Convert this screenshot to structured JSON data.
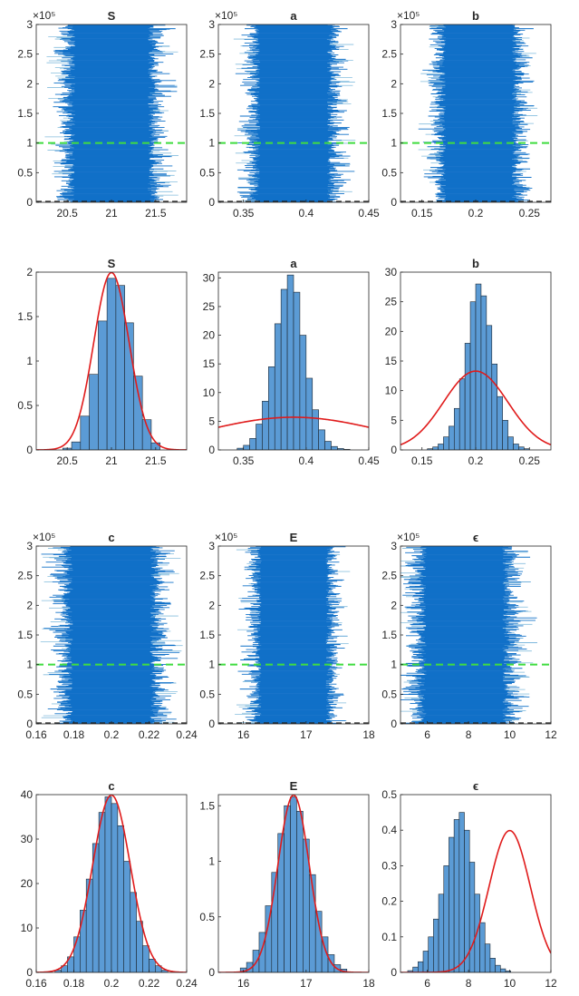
{
  "chart_data": [
    {
      "id": "trace-S",
      "type": "trace",
      "title": "S",
      "ylim": [
        0,
        3
      ],
      "yticks": [
        0,
        0.5,
        1,
        1.5,
        2,
        2.5,
        3
      ],
      "ytick_labels": [
        "0",
        "0.5",
        "1",
        "1.5",
        "2",
        "2.5",
        "3"
      ],
      "y_exponent_label": "×10⁵",
      "xlim": [
        20.15,
        21.85
      ],
      "xticks": [
        20.5,
        21,
        21.5
      ],
      "xtick_labels": [
        "20.5",
        "21",
        "21.5"
      ],
      "band_center": 21.0,
      "band_sd": 0.2,
      "burn_in": 1,
      "seed": 11
    },
    {
      "id": "trace-a",
      "type": "trace",
      "title": "a",
      "ylim": [
        0,
        3
      ],
      "yticks": [
        0,
        0.5,
        1,
        1.5,
        2,
        2.5,
        3
      ],
      "ytick_labels": [
        "0",
        "0.5",
        "1",
        "1.5",
        "2",
        "2.5",
        "3"
      ],
      "y_exponent_label": "×10⁵",
      "xlim": [
        0.33,
        0.45
      ],
      "xticks": [
        0.35,
        0.4,
        0.45
      ],
      "xtick_labels": [
        "0.35",
        "0.4",
        "0.45"
      ],
      "band_center": 0.39,
      "band_sd": 0.013,
      "burn_in": 1,
      "seed": 23
    },
    {
      "id": "trace-b",
      "type": "trace",
      "title": "b",
      "ylim": [
        0,
        3
      ],
      "yticks": [
        0,
        0.5,
        1,
        1.5,
        2,
        2.5,
        3
      ],
      "ytick_labels": [
        "0",
        "0.5",
        "1",
        "1.5",
        "2",
        "2.5",
        "3"
      ],
      "y_exponent_label": "×10⁵",
      "xlim": [
        0.13,
        0.27
      ],
      "xticks": [
        0.15,
        0.2,
        0.25
      ],
      "xtick_labels": [
        "0.15",
        "0.2",
        "0.25"
      ],
      "band_center": 0.203,
      "band_sd": 0.015,
      "burn_in": 1,
      "seed": 37
    },
    {
      "id": "hist-S",
      "type": "histogram",
      "title": "S",
      "ylim": [
        0,
        2
      ],
      "yticks": [
        0,
        0.5,
        1,
        1.5,
        2
      ],
      "ytick_labels": [
        "0",
        "0.5",
        "1",
        "1.5",
        "2"
      ],
      "xlim": [
        20.15,
        21.85
      ],
      "xticks": [
        20.5,
        21,
        21.5
      ],
      "xtick_labels": [
        "20.5",
        "21",
        "21.5"
      ],
      "bin_edges": [
        20.45,
        20.55,
        20.65,
        20.75,
        20.85,
        20.95,
        21.05,
        21.15,
        21.25,
        21.35,
        21.45,
        21.55
      ],
      "densities": [
        0.02,
        0.09,
        0.38,
        0.85,
        1.45,
        1.93,
        1.85,
        1.43,
        0.83,
        0.34,
        0.08
      ],
      "prior": {
        "dist": "normal",
        "mean": 21.0,
        "sd": 0.2
      }
    },
    {
      "id": "hist-a",
      "type": "histogram",
      "title": "a",
      "ylim": [
        0,
        31
      ],
      "yticks": [
        0,
        5,
        10,
        15,
        20,
        25,
        30
      ],
      "ytick_labels": [
        "0",
        "5",
        "10",
        "15",
        "20",
        "25",
        "30"
      ],
      "xlim": [
        0.33,
        0.45
      ],
      "xticks": [
        0.35,
        0.4,
        0.45
      ],
      "xtick_labels": [
        "0.35",
        "0.4",
        "0.45"
      ],
      "bin_edges": [
        0.345,
        0.35,
        0.355,
        0.36,
        0.365,
        0.37,
        0.375,
        0.38,
        0.385,
        0.39,
        0.395,
        0.4,
        0.405,
        0.41,
        0.415,
        0.42,
        0.425,
        0.43,
        0.435
      ],
      "densities": [
        0.3,
        0.8,
        2.0,
        4.5,
        8.5,
        14.5,
        22.0,
        28.0,
        30.5,
        27.5,
        20.0,
        12.5,
        7.0,
        3.5,
        1.5,
        0.6,
        0.25,
        0.1
      ],
      "prior": {
        "dist": "normal",
        "mean": 0.39,
        "sd": 0.07
      }
    },
    {
      "id": "hist-b",
      "type": "histogram",
      "title": "b",
      "ylim": [
        0,
        30
      ],
      "yticks": [
        0,
        5,
        10,
        15,
        20,
        25,
        30
      ],
      "ytick_labels": [
        "0",
        "5",
        "10",
        "15",
        "20",
        "25",
        "30"
      ],
      "xlim": [
        0.13,
        0.27
      ],
      "xticks": [
        0.15,
        0.2,
        0.25
      ],
      "xtick_labels": [
        "0.15",
        "0.2",
        "0.25"
      ],
      "bin_edges": [
        0.155,
        0.16,
        0.165,
        0.17,
        0.175,
        0.18,
        0.185,
        0.19,
        0.195,
        0.2,
        0.205,
        0.21,
        0.215,
        0.22,
        0.225,
        0.23,
        0.235,
        0.24,
        0.245,
        0.25
      ],
      "densities": [
        0.2,
        0.5,
        1.0,
        2.2,
        4.0,
        7.0,
        12.0,
        18.0,
        25.0,
        28.0,
        26.0,
        21.0,
        14.5,
        9.0,
        5.0,
        2.2,
        1.0,
        0.5,
        0.2
      ],
      "prior": {
        "dist": "normal",
        "mean": 0.2,
        "sd": 0.03
      }
    },
    {
      "id": "trace-c",
      "type": "trace",
      "title": "c",
      "ylim": [
        0,
        3
      ],
      "yticks": [
        0,
        0.5,
        1,
        1.5,
        2,
        2.5,
        3
      ],
      "ytick_labels": [
        "0",
        "0.5",
        "1",
        "1.5",
        "2",
        "2.5",
        "3"
      ],
      "y_exponent_label": "×10⁵",
      "xlim": [
        0.16,
        0.24
      ],
      "xticks": [
        0.16,
        0.18,
        0.2,
        0.22,
        0.24
      ],
      "xtick_labels": [
        "0.16",
        "0.18",
        "0.2",
        "0.22",
        "0.24"
      ],
      "band_center": 0.2,
      "band_sd": 0.01,
      "burn_in": 1,
      "seed": 41
    },
    {
      "id": "trace-E",
      "type": "trace",
      "title": "E",
      "ylim": [
        0,
        3
      ],
      "yticks": [
        0,
        0.5,
        1,
        1.5,
        2,
        2.5,
        3
      ],
      "ytick_labels": [
        "0",
        "0.5",
        "1",
        "1.5",
        "2",
        "2.5",
        "3"
      ],
      "y_exponent_label": "×10⁵",
      "xlim": [
        15.6,
        18
      ],
      "xticks": [
        16,
        17,
        18
      ],
      "xtick_labels": [
        "16",
        "17",
        "18"
      ],
      "band_center": 16.8,
      "band_sd": 0.25,
      "burn_in": 1,
      "seed": 53
    },
    {
      "id": "trace-eps",
      "type": "trace",
      "title": "ϵ",
      "ylim": [
        0,
        3
      ],
      "yticks": [
        0,
        0.5,
        1,
        1.5,
        2,
        2.5,
        3
      ],
      "ytick_labels": [
        "0",
        "0.5",
        "1",
        "1.5",
        "2",
        "2.5",
        "3"
      ],
      "y_exponent_label": "×10⁵",
      "xlim": [
        4.7,
        12
      ],
      "xticks": [
        6,
        8,
        10,
        12
      ],
      "xtick_labels": [
        "6",
        "8",
        "10",
        "12"
      ],
      "band_center": 7.8,
      "band_sd": 0.9,
      "burn_in": 1,
      "seed": 67
    },
    {
      "id": "hist-c",
      "type": "histogram",
      "title": "c",
      "ylim": [
        0,
        40
      ],
      "yticks": [
        0,
        10,
        20,
        30,
        40
      ],
      "ytick_labels": [
        "0",
        "10",
        "20",
        "30",
        "40"
      ],
      "xlim": [
        0.16,
        0.24
      ],
      "xticks": [
        0.16,
        0.18,
        0.2,
        0.22,
        0.24
      ],
      "xtick_labels": [
        "0.16",
        "0.18",
        "0.2",
        "0.22",
        "0.24"
      ],
      "bin_edges": [
        0.17,
        0.1733,
        0.1766,
        0.18,
        0.1833,
        0.1866,
        0.19,
        0.1933,
        0.1966,
        0.2,
        0.2033,
        0.2066,
        0.21,
        0.2133,
        0.2166,
        0.22,
        0.2233,
        0.2266,
        0.23
      ],
      "densities": [
        0.5,
        1.5,
        3.5,
        8.0,
        14.0,
        21.0,
        29.0,
        36.0,
        39.5,
        38.0,
        33.0,
        25.0,
        18.0,
        11.5,
        6.0,
        3.0,
        1.5,
        0.5
      ],
      "prior": {
        "dist": "normal",
        "mean": 0.2,
        "sd": 0.01
      }
    },
    {
      "id": "hist-E",
      "type": "histogram",
      "title": "E",
      "ylim": [
        0,
        1.6
      ],
      "yticks": [
        0,
        0.5,
        1,
        1.5
      ],
      "ytick_labels": [
        "0",
        "0.5",
        "1",
        "1.5"
      ],
      "xlim": [
        15.6,
        18
      ],
      "xticks": [
        16,
        17,
        18
      ],
      "xtick_labels": [
        "16",
        "17",
        "18"
      ],
      "bin_edges": [
        15.95,
        16.05,
        16.15,
        16.25,
        16.35,
        16.45,
        16.55,
        16.65,
        16.75,
        16.85,
        16.95,
        17.05,
        17.15,
        17.25,
        17.35,
        17.45,
        17.55,
        17.65
      ],
      "densities": [
        0.04,
        0.09,
        0.2,
        0.36,
        0.6,
        0.9,
        1.25,
        1.5,
        1.58,
        1.45,
        1.2,
        0.88,
        0.55,
        0.32,
        0.16,
        0.07,
        0.03
      ],
      "prior": {
        "dist": "normal",
        "mean": 16.8,
        "sd": 0.25
      }
    },
    {
      "id": "hist-eps",
      "type": "histogram",
      "title": "ϵ",
      "ylim": [
        0,
        0.5
      ],
      "yticks": [
        0,
        0.1,
        0.2,
        0.3,
        0.4,
        0.5
      ],
      "ytick_labels": [
        "0",
        "0.1",
        "0.2",
        "0.3",
        "0.4",
        "0.5"
      ],
      "xlim": [
        4.7,
        12
      ],
      "xticks": [
        6,
        8,
        10,
        12
      ],
      "xtick_labels": [
        "6",
        "8",
        "10",
        "12"
      ],
      "bin_edges": [
        5.05,
        5.3,
        5.55,
        5.8,
        6.05,
        6.3,
        6.55,
        6.8,
        7.05,
        7.3,
        7.55,
        7.8,
        8.05,
        8.3,
        8.55,
        8.8,
        9.05,
        9.3,
        9.55,
        9.8,
        10.05
      ],
      "densities": [
        0.005,
        0.015,
        0.03,
        0.06,
        0.1,
        0.15,
        0.22,
        0.3,
        0.38,
        0.43,
        0.45,
        0.4,
        0.31,
        0.22,
        0.14,
        0.08,
        0.04,
        0.02,
        0.01,
        0.004
      ],
      "prior": {
        "dist": "normal",
        "mean": 10,
        "sd": 1
      }
    }
  ],
  "colors": {
    "bar_fill": "#5b9bd5",
    "bar_edge": "#1c2630",
    "trace": "#1170c8",
    "trace_edge": "#86bede",
    "prior_curve": "#e01b1b",
    "burn_in_line": "#3fdc3f",
    "axis": "#262626"
  }
}
